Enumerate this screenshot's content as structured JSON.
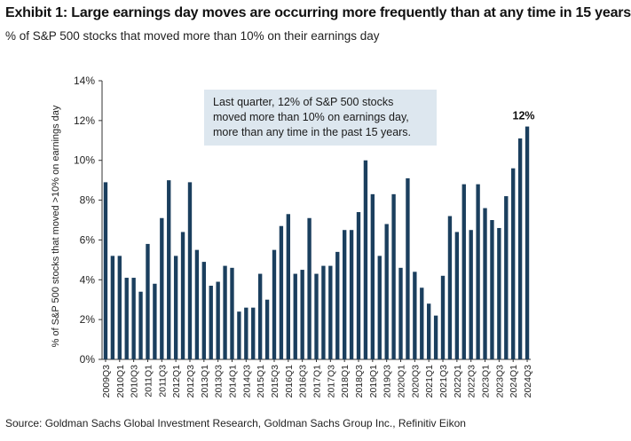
{
  "header": {
    "title": "Exhibit 1: Large earnings day moves are occurring more frequently than at any time in 15 years",
    "subtitle": "% of S&P 500 stocks that moved more than 10% on their earnings day"
  },
  "footer": {
    "source": "Source: Goldman Sachs Global Investment Research, Goldman Sachs Group Inc., Refinitiv Eikon"
  },
  "colors": {
    "bar": "#1b3f5e",
    "annotation_bg": "#dde7ef",
    "axis": "#333333"
  },
  "chart_data": {
    "type": "bar",
    "ylabel": "% of S&P 500 stocks that moved >10% on earnings day",
    "ylim": [
      0,
      14
    ],
    "yticks": [
      "0%",
      "2%",
      "4%",
      "6%",
      "8%",
      "10%",
      "12%",
      "14%"
    ],
    "grid": false,
    "categories": [
      "2009Q3",
      "2009Q4",
      "2010Q1",
      "2010Q2",
      "2010Q3",
      "2010Q4",
      "2011Q1",
      "2011Q2",
      "2011Q3",
      "2011Q4",
      "2012Q1",
      "2012Q2",
      "2012Q3",
      "2012Q4",
      "2013Q1",
      "2013Q2",
      "2013Q3",
      "2013Q4",
      "2014Q1",
      "2014Q2",
      "2014Q3",
      "2014Q4",
      "2015Q1",
      "2015Q2",
      "2015Q3",
      "2015Q4",
      "2016Q1",
      "2016Q2",
      "2016Q3",
      "2016Q4",
      "2017Q1",
      "2017Q2",
      "2017Q3",
      "2017Q4",
      "2018Q1",
      "2018Q2",
      "2018Q3",
      "2018Q4",
      "2019Q1",
      "2019Q2",
      "2019Q3",
      "2019Q4",
      "2020Q1",
      "2020Q2",
      "2020Q3",
      "2020Q4",
      "2021Q1",
      "2021Q2",
      "2021Q3",
      "2021Q4",
      "2022Q1",
      "2022Q2",
      "2022Q3",
      "2022Q4",
      "2023Q1",
      "2023Q2",
      "2023Q3",
      "2023Q4",
      "2024Q1",
      "2024Q2",
      "2024Q3"
    ],
    "tick_labels": [
      "2009Q3",
      "2010Q1",
      "2010Q3",
      "2011Q1",
      "2011Q3",
      "2012Q1",
      "2012Q3",
      "2013Q1",
      "2013Q3",
      "2014Q1",
      "2014Q3",
      "2015Q1",
      "2015Q3",
      "2016Q1",
      "2016Q3",
      "2017Q1",
      "2017Q3",
      "2018Q1",
      "2018Q3",
      "2019Q1",
      "2019Q3",
      "2020Q1",
      "2020Q3",
      "2021Q1",
      "2021Q3",
      "2022Q1",
      "2022Q3",
      "2023Q1",
      "2023Q3",
      "2024Q1",
      "2024Q3"
    ],
    "values": [
      8.9,
      5.2,
      5.2,
      4.1,
      4.1,
      3.4,
      5.8,
      3.8,
      7.1,
      9.0,
      5.2,
      6.4,
      8.9,
      5.5,
      4.9,
      3.7,
      3.9,
      4.7,
      4.6,
      2.4,
      2.6,
      2.6,
      4.3,
      3.0,
      5.5,
      6.7,
      7.3,
      4.3,
      4.5,
      7.1,
      4.3,
      4.7,
      4.7,
      5.4,
      6.5,
      6.5,
      7.4,
      10.0,
      8.3,
      5.2,
      6.8,
      8.3,
      4.6,
      9.1,
      4.4,
      3.6,
      2.8,
      2.2,
      4.2,
      7.2,
      6.4,
      8.8,
      6.5,
      8.8,
      7.6,
      7.0,
      6.6,
      8.2,
      9.6,
      11.1,
      11.7
    ],
    "data_labels": [
      {
        "category": "2024Q3",
        "text": "12%"
      }
    ],
    "annotation": [
      "Last quarter, 12% of S&P 500 stocks",
      "moved more than 10% on earnings day,",
      "more than any time in the past 15 years."
    ]
  }
}
